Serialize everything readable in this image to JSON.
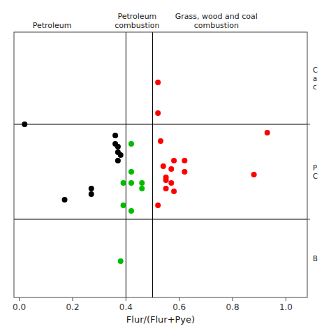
{
  "chart_data": {
    "type": "scatter",
    "xlabel": "Flur/(Flur+Pye)",
    "xlim": [
      -0.02,
      1.08
    ],
    "ylim": [
      0.05,
      1.0
    ],
    "xticks": [
      {
        "value": 0,
        "label": "0.0"
      },
      0.2,
      0.4,
      0.6,
      0.8,
      {
        "value": 1,
        "label": "1.0"
      }
    ],
    "yticks": [],
    "tick_labels": "x",
    "grid": false,
    "vlines": [
      0.4,
      0.5
    ],
    "hlines": [
      0.33,
      0.67
    ],
    "annotations": {
      "top": [
        "Petroleum",
        "Petroleum\ncombustion",
        "Grass, wood and coal\ncombustion"
      ],
      "right": [
        "C\na\nc",
        "P\nC",
        "B"
      ]
    },
    "series": [
      {
        "color": "#000000",
        "x": [
          0.02,
          0.17,
          0.27,
          0.36,
          0.36,
          0.37,
          0.37,
          0.38,
          0.37,
          0.27
        ],
        "values": [
          0.67,
          0.4,
          0.42,
          0.63,
          0.6,
          0.59,
          0.57,
          0.56,
          0.54,
          0.44
        ]
      },
      {
        "color": "#00bb00",
        "x": [
          0.42,
          0.42,
          0.39,
          0.42,
          0.46,
          0.46,
          0.39,
          0.42,
          0.38
        ],
        "values": [
          0.6,
          0.5,
          0.46,
          0.46,
          0.46,
          0.44,
          0.38,
          0.36,
          0.18
        ]
      },
      {
        "color": "#ff0000",
        "x": [
          0.52,
          0.52,
          0.53,
          0.58,
          0.62,
          0.54,
          0.57,
          0.62,
          0.55,
          0.55,
          0.57,
          0.55,
          0.58,
          0.52,
          0.88,
          0.93
        ],
        "values": [
          0.82,
          0.71,
          0.61,
          0.54,
          0.54,
          0.52,
          0.51,
          0.5,
          0.48,
          0.47,
          0.46,
          0.44,
          0.43,
          0.38,
          0.49,
          0.64
        ]
      }
    ]
  }
}
